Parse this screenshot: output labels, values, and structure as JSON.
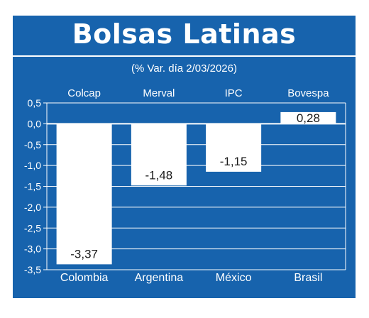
{
  "header": {
    "title": "Bolsas Latinas",
    "subtitle": "(% Var. día 2/03/2026)"
  },
  "colors": {
    "background": "#1763ad",
    "bar": "#ffffff",
    "text": "#ffffff",
    "bar_label": "#1a1a1a"
  },
  "chart_data": {
    "type": "bar",
    "title": "Bolsas Latinas",
    "subtitle": "(% Var. día 2/03/2026)",
    "indices": [
      "Colcap",
      "Merval",
      "IPC",
      "Bovespa"
    ],
    "categories": [
      "Colombia",
      "Argentina",
      "México",
      "Brasil"
    ],
    "values": [
      -3.37,
      -1.48,
      -1.15,
      0.28
    ],
    "value_labels": [
      "-3,37",
      "-1,48",
      "-1,15",
      "0,28"
    ],
    "yticks": [
      0.5,
      0.0,
      -0.5,
      -1.0,
      -1.5,
      -2.0,
      -2.5,
      -3.0,
      -3.5
    ],
    "ytick_labels": [
      "0,5",
      "0,0",
      "-0,5",
      "-1,0",
      "-1,5",
      "-2,0",
      "-2,5",
      "-3,0",
      "-3,5"
    ],
    "ylim": [
      -3.5,
      0.5
    ],
    "xlabel": "",
    "ylabel": "",
    "grid": true,
    "legend": "none"
  }
}
